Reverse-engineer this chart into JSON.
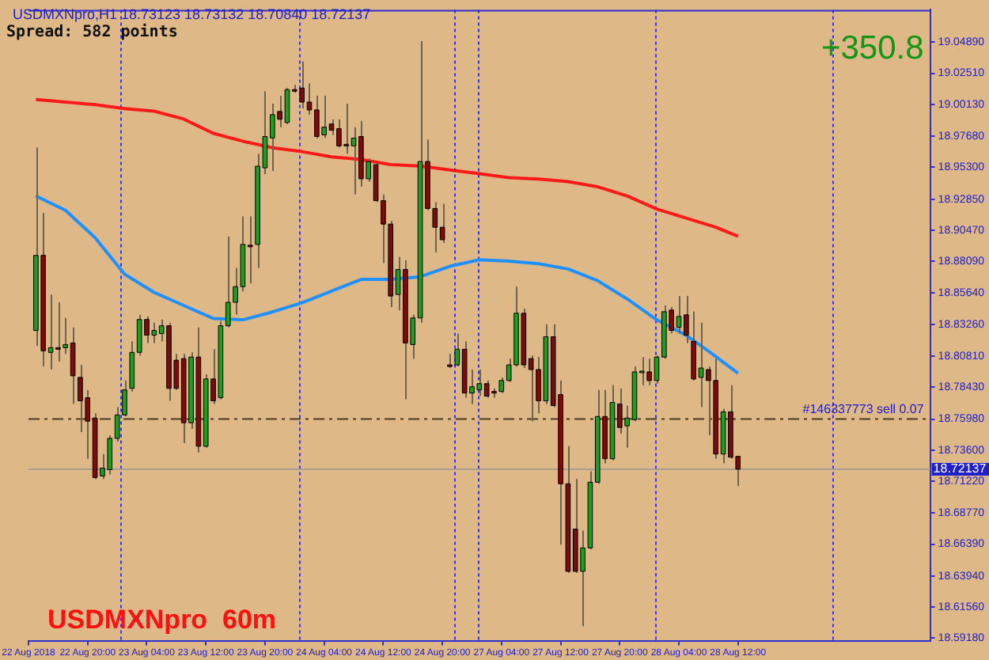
{
  "chart_data": {
    "type": "candlestick",
    "title": "USDMXNpro,H1 18.73123 18.73132 18.70840 18.72137",
    "annotations": [
      "Spread: 582 points",
      "+350.8",
      "USDMXNpro  60m"
    ],
    "categories": [
      "22 Aug 2018",
      null,
      null,
      null,
      null,
      null,
      null,
      null,
      "22 Aug 20:00",
      null,
      null,
      null,
      null,
      null,
      null,
      null,
      "23 Aug 04:00",
      null,
      null,
      null,
      null,
      null,
      null,
      null,
      "23 Aug 12:00",
      null,
      null,
      null,
      null,
      null,
      null,
      null,
      "23 Aug 20:00",
      null,
      null,
      null,
      null,
      null,
      null,
      null,
      "24 Aug 04:00",
      null,
      null,
      null,
      null,
      null,
      null,
      null,
      "24 Aug 12:00",
      null,
      null,
      null,
      null,
      null,
      null,
      null,
      "24 Aug 20:00",
      null,
      null,
      null,
      null,
      null,
      null,
      null,
      "27 Aug 04:00",
      null,
      null,
      null,
      null,
      null,
      null,
      null,
      "27 Aug 12:00",
      null,
      null,
      null,
      null,
      null,
      null,
      null,
      "27 Aug 20:00",
      null,
      null,
      null,
      null,
      null,
      null,
      null,
      "28 Aug 04:00",
      null,
      null,
      null,
      null,
      null,
      null,
      null,
      "28 Aug 12:00",
      null,
      null,
      null,
      null,
      null,
      null,
      null,
      null,
      null,
      null,
      null,
      null,
      null,
      null,
      null,
      null,
      null,
      null,
      null,
      null,
      null,
      null,
      null,
      null,
      null,
      null
    ],
    "ohlc": [
      null,
      [
        18.8278,
        18.9682,
        18.8158,
        18.8854
      ],
      [
        18.8854,
        18.9178,
        18.8002,
        18.8122
      ],
      [
        18.811,
        18.8554,
        18.7978,
        18.8146
      ],
      [
        18.8146,
        18.8494,
        18.8038,
        18.814
      ],
      [
        18.8146,
        18.8374,
        18.8098,
        18.817
      ],
      [
        18.8182,
        18.8302,
        18.7714,
        18.793
      ],
      [
        18.7918,
        18.8014,
        18.7498,
        18.7738
      ],
      [
        18.7762,
        18.7822,
        18.7294,
        18.7582
      ],
      [
        18.7606,
        18.7642,
        18.7138,
        18.715
      ],
      [
        18.7162,
        18.733,
        18.7138,
        18.7222
      ],
      [
        18.721,
        18.7474,
        18.7174,
        18.745
      ],
      [
        18.745,
        18.769,
        18.7426,
        18.763
      ],
      [
        18.763,
        18.7894,
        18.7618,
        18.7822
      ],
      [
        18.7834,
        18.8194,
        18.781,
        18.811
      ],
      [
        18.811,
        18.8398,
        18.8086,
        18.8362
      ],
      [
        18.8362,
        18.8386,
        18.8182,
        18.8242
      ],
      [
        18.8242,
        18.8338,
        18.8182,
        18.8278
      ],
      [
        18.8254,
        18.8362,
        18.8194,
        18.8314
      ],
      [
        18.8314,
        18.8338,
        18.7738,
        18.7834
      ],
      [
        18.805,
        18.8098,
        18.7822,
        18.7834
      ],
      [
        18.8062,
        18.8098,
        18.7414,
        18.757
      ],
      [
        18.757,
        18.811,
        18.7522,
        18.8074
      ],
      [
        18.8074,
        18.8302,
        18.7342,
        18.739
      ],
      [
        18.739,
        18.7942,
        18.7378,
        18.7906
      ],
      [
        18.7906,
        18.8134,
        18.7714,
        18.7738
      ],
      [
        18.7762,
        18.835,
        18.775,
        18.8314
      ],
      [
        18.8314,
        18.8998,
        18.8302,
        18.8494
      ],
      [
        18.8494,
        18.8758,
        18.8398,
        18.8614
      ],
      [
        18.8614,
        18.9154,
        18.8578,
        18.8938
      ],
      [
        18.8926,
        18.9154,
        18.8638,
        18.8932
      ],
      [
        18.8938,
        18.9634,
        18.8758,
        18.9538
      ],
      [
        18.9526,
        19.0114,
        18.9478,
        18.9766
      ],
      [
        18.9754,
        19.0018,
        18.9502,
        18.9934
      ],
      [
        18.9958,
        19.0078,
        18.9838,
        18.9898
      ],
      [
        18.9874,
        19.0138,
        18.9862,
        19.0126
      ],
      [
        19.0126,
        19.0162,
        19.0102,
        19.012
      ],
      [
        19.0138,
        19.0342,
        18.9982,
        19.003
      ],
      [
        19.003,
        19.0174,
        18.9934,
        18.997
      ],
      [
        18.997,
        19.0078,
        18.9754,
        18.9766
      ],
      [
        18.9778,
        19.0078,
        18.9754,
        18.9838
      ],
      [
        18.9862,
        18.9898,
        18.9778,
        18.9814
      ],
      [
        18.9826,
        18.9898,
        18.9682,
        18.9694
      ],
      [
        18.9706,
        19.0018,
        18.9634,
        18.97
      ],
      [
        18.9694,
        18.9838,
        18.9322,
        18.9754
      ],
      [
        18.9766,
        18.9886,
        18.9382,
        18.9442
      ],
      [
        18.9442,
        18.9598,
        18.9418,
        18.9574
      ],
      [
        18.955,
        18.9562,
        18.9262,
        18.9274
      ],
      [
        18.9274,
        18.9322,
        18.8794,
        18.9094
      ],
      [
        18.9094,
        18.9118,
        18.8458,
        18.8542
      ],
      [
        18.8554,
        18.8842,
        18.8434,
        18.8746
      ],
      [
        18.8746,
        18.8818,
        18.775,
        18.8182
      ],
      [
        18.817,
        18.8398,
        18.8062,
        18.8374
      ],
      [
        18.8374,
        19.0498,
        18.8338,
        18.9574
      ],
      [
        18.9574,
        18.9742,
        18.9202,
        18.9214
      ],
      [
        18.9214,
        18.9262,
        18.8878,
        18.907
      ],
      [
        18.907,
        18.925,
        18.895,
        18.8974
      ],
      [
        18.8014,
        18.8098,
        18.799,
        18.8008
      ],
      [
        18.8014,
        18.8254,
        18.8002,
        18.8134
      ],
      [
        18.8134,
        18.8194,
        18.7762,
        18.7798
      ],
      [
        18.7798,
        18.7978,
        18.7714,
        18.7846
      ],
      [
        18.7822,
        18.7978,
        18.7774,
        18.787
      ],
      [
        18.787,
        18.7894,
        18.7762,
        18.7774
      ],
      [
        18.781,
        18.7834,
        18.7762,
        18.7804
      ],
      [
        18.781,
        18.7918,
        18.7798,
        18.7894
      ],
      [
        18.7894,
        18.8062,
        18.7882,
        18.8014
      ],
      [
        18.8014,
        18.8614,
        18.8002,
        18.841
      ],
      [
        18.841,
        18.8446,
        18.799,
        18.8014
      ],
      [
        18.8062,
        18.8086,
        18.7582,
        18.7978
      ],
      [
        18.7978,
        18.8074,
        18.7642,
        18.7738
      ],
      [
        18.7738,
        18.8326,
        18.7714,
        18.823
      ],
      [
        18.823,
        18.8326,
        18.769,
        18.7702
      ],
      [
        18.7786,
        18.7894,
        18.6634,
        18.7102
      ],
      [
        18.7102,
        18.739,
        18.6418,
        18.643
      ],
      [
        18.6754,
        18.7138,
        18.6418,
        18.643
      ],
      [
        18.643,
        18.6742,
        18.601,
        18.661
      ],
      [
        18.661,
        18.7198,
        18.6598,
        18.7114
      ],
      [
        18.7114,
        18.7822,
        18.7102,
        18.7618
      ],
      [
        18.7618,
        18.7822,
        18.7258,
        18.7294
      ],
      [
        18.7294,
        18.7858,
        18.7282,
        18.7726
      ],
      [
        18.7714,
        18.7834,
        18.7486,
        18.7534
      ],
      [
        18.7546,
        18.7702,
        18.7378,
        18.7606
      ],
      [
        18.7594,
        18.8002,
        18.7582,
        18.796
      ],
      [
        18.796,
        18.8074,
        18.7858,
        18.7966
      ],
      [
        18.796,
        18.8062,
        18.7858,
        18.7894
      ],
      [
        18.7894,
        18.8086,
        18.787,
        18.8074
      ],
      [
        18.8074,
        18.847,
        18.8062,
        18.8422
      ],
      [
        18.8434,
        18.8458,
        18.8254,
        18.8278
      ],
      [
        18.8302,
        18.8542,
        18.8254,
        18.8386
      ],
      [
        18.8398,
        18.8542,
        18.8182,
        18.8242
      ],
      [
        18.8194,
        18.8422,
        18.7894,
        18.7906
      ],
      [
        18.7918,
        18.8338,
        18.769,
        18.799
      ],
      [
        18.7978,
        18.8002,
        18.7474,
        18.7894
      ],
      [
        18.7894,
        18.8062,
        18.7294,
        18.733
      ],
      [
        18.733,
        18.7678,
        18.7258,
        18.7654
      ],
      [
        18.7654,
        18.7858,
        18.7294,
        18.7306
      ],
      [
        18.7312,
        18.7313,
        18.7084,
        18.7214
      ],
      null,
      null,
      null,
      null,
      null,
      null,
      null,
      null,
      null,
      null,
      null,
      null,
      null,
      null,
      null,
      null,
      null,
      null,
      null,
      null,
      null,
      null,
      null,
      null,
      null,
      null
    ],
    "colors": [
      null,
      "#1e9e1e",
      "#7d0b0b",
      "#1e9e1e",
      "#7d0b0b",
      "#1e9e1e",
      "#7d0b0b",
      "#7d0b0b",
      "#7d0b0b",
      "#7d0b0b",
      "#1e9e1e",
      "#1e9e1e",
      "#1e9e1e",
      "#1e9e1e",
      "#1e9e1e",
      "#1e9e1e",
      "#7d0b0b",
      "#1e9e1e",
      "#1e9e1e",
      "#7d0b0b",
      "#7d0b0b",
      "#7d0b0b",
      "#1e9e1e",
      "#7d0b0b",
      "#1e9e1e",
      "#7d0b0b",
      "#1e9e1e",
      "#1e9e1e",
      "#1e9e1e",
      "#1e9e1e",
      "#7d0b0b",
      "#1e9e1e",
      "#1e9e1e",
      "#1e9e1e",
      "#7d0b0b",
      "#1e9e1e",
      "#7d0b0b",
      "#7d0b0b",
      "#7d0b0b",
      "#7d0b0b",
      "#1e9e1e",
      "#7d0b0b",
      "#7d0b0b",
      "#7d0b0b",
      "#1e9e1e",
      "#7d0b0b",
      "#1e9e1e",
      "#7d0b0b",
      "#7d0b0b",
      "#7d0b0b",
      "#1e9e1e",
      "#7d0b0b",
      "#1e9e1e",
      "#1e9e1e",
      "#7d0b0b",
      "#7d0b0b",
      "#7d0b0b",
      "#7d0b0b",
      "#1e9e1e",
      "#7d0b0b",
      "#1e9e1e",
      "#1e9e1e",
      "#7d0b0b",
      "#7d0b0b",
      "#1e9e1e",
      "#1e9e1e",
      "#1e9e1e",
      "#7d0b0b",
      "#7d0b0b",
      "#7d0b0b",
      "#1e9e1e",
      "#7d0b0b",
      "#7d0b0b",
      "#7d0b0b",
      "#7d0b0b",
      "#1e9e1e",
      "#1e9e1e",
      "#1e9e1e",
      "#7d0b0b",
      "#1e9e1e",
      "#7d0b0b",
      "#1e9e1e",
      "#1e9e1e",
      "#1e9e1e",
      "#7d0b0b",
      "#1e9e1e",
      "#1e9e1e",
      "#7d0b0b",
      "#1e9e1e",
      "#7d0b0b",
      "#7d0b0b",
      "#1e9e1e",
      "#7d0b0b",
      "#7d0b0b",
      "#1e9e1e",
      "#7d0b0b",
      "#7d0b0b",
      null,
      null,
      null,
      null,
      null,
      null,
      null,
      null,
      null,
      null,
      null,
      null,
      null,
      null,
      null,
      null,
      null,
      null,
      null,
      null,
      null,
      null,
      null,
      null,
      null,
      null
    ],
    "series": [
      {
        "type": "line",
        "color": "#ff1a1a",
        "values": [
          null,
          19.005,
          null,
          null,
          null,
          19.003,
          null,
          null,
          null,
          19.001,
          null,
          null,
          null,
          18.998,
          null,
          null,
          null,
          18.996,
          null,
          null,
          null,
          18.99,
          null,
          null,
          null,
          18.979,
          null,
          null,
          null,
          18.973,
          null,
          null,
          null,
          18.968,
          null,
          null,
          null,
          18.965,
          null,
          null,
          null,
          18.961,
          null,
          null,
          null,
          18.959,
          null,
          null,
          null,
          18.955,
          null,
          null,
          null,
          18.954,
          null,
          null,
          null,
          18.951,
          null,
          null,
          null,
          18.948,
          null,
          null,
          null,
          18.945,
          null,
          null,
          null,
          18.944,
          null,
          null,
          null,
          18.942,
          null,
          null,
          null,
          18.938,
          null,
          null,
          null,
          18.931,
          null,
          null,
          null,
          18.921,
          null,
          null,
          null,
          18.914,
          null,
          null,
          null,
          18.907,
          null,
          null,
          18.9,
          null,
          null,
          null,
          null,
          null,
          null,
          null,
          null,
          null,
          null,
          null,
          null,
          null,
          null,
          null,
          null,
          null,
          null,
          null,
          null,
          null,
          null,
          null,
          null,
          null,
          null
        ]
      },
      {
        "type": "line",
        "color": "#1e90ff",
        "values": [
          null,
          18.931,
          null,
          null,
          null,
          18.92,
          null,
          null,
          null,
          18.899,
          null,
          null,
          null,
          18.871,
          null,
          null,
          null,
          18.857,
          null,
          null,
          null,
          18.847,
          null,
          null,
          null,
          18.837,
          null,
          null,
          null,
          18.836,
          null,
          null,
          null,
          18.842,
          null,
          null,
          null,
          18.849,
          null,
          null,
          null,
          18.858,
          null,
          null,
          null,
          18.867,
          null,
          null,
          null,
          18.867,
          null,
          null,
          null,
          18.869,
          null,
          null,
          null,
          18.877,
          null,
          null,
          null,
          18.882,
          null,
          null,
          null,
          18.881,
          null,
          null,
          null,
          18.879,
          null,
          null,
          null,
          18.875,
          null,
          null,
          null,
          18.866,
          null,
          null,
          null,
          18.852,
          null,
          null,
          null,
          18.836,
          null,
          null,
          null,
          18.824,
          null,
          null,
          18.812,
          null,
          null,
          null,
          18.795,
          null,
          null,
          null,
          null,
          null,
          null,
          null,
          null,
          null,
          null,
          null,
          null,
          null,
          null,
          null,
          null,
          null,
          null,
          null,
          null,
          null,
          null,
          null,
          null,
          null,
          null
        ]
      }
    ],
    "ylim": [
      18.5898,
      19.0738
    ],
    "yticks": [
      {
        "value": 19.0489,
        "label": "19.04890"
      },
      {
        "value": 19.0251,
        "label": "19.02510"
      },
      {
        "value": 19.0013,
        "label": "19.00130"
      },
      {
        "value": 18.9768,
        "label": "18.97680"
      },
      {
        "value": 18.953,
        "label": "18.95300"
      },
      {
        "value": 18.9285,
        "label": "18.92850"
      },
      {
        "value": 18.9047,
        "label": "18.90470"
      },
      {
        "value": 18.8809,
        "label": "18.88090"
      },
      {
        "value": 18.8564,
        "label": "18.85640"
      },
      {
        "value": 18.8326,
        "label": "18.83260"
      },
      {
        "value": 18.8081,
        "label": "18.80810"
      },
      {
        "value": 18.7843,
        "label": "18.78430"
      },
      {
        "value": 18.7598,
        "label": "18.75980"
      },
      {
        "value": 18.736,
        "label": "18.73600"
      },
      {
        "value": 18.7122,
        "label": "18.71220"
      },
      {
        "value": 18.6877,
        "label": "18.68770"
      },
      {
        "value": 18.6639,
        "label": "18.66390"
      },
      {
        "value": 18.6394,
        "label": "18.63940"
      },
      {
        "value": 18.6156,
        "label": "18.61560"
      },
      {
        "value": 18.5918,
        "label": "18.59180"
      }
    ],
    "ref_lines": [
      {
        "axis": "y",
        "value": 18.7598,
        "label": "#146337773 sell 0.07",
        "color": "#4a3a20",
        "line_style": "dashed"
      },
      {
        "axis": "y",
        "value": 18.72137,
        "label": "18.72137",
        "color": "#a89e94",
        "line_style": "solid"
      }
    ],
    "grid": false,
    "legend": false
  }
}
